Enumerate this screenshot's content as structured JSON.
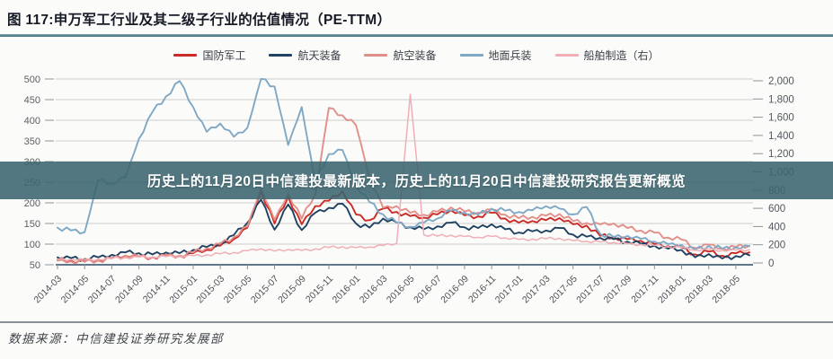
{
  "title": "图 117:申万军工行业及其二级子行业的估值情况（PE-TTM）",
  "watermark_banner": {
    "text": "历史上的11月20日中信建投最新版本，历史上的11月20日中信建投研究报告更新概览",
    "background_color": "#3A646E"
  },
  "footer": {
    "source_label": "数据来源：中信建投证券研究发展部"
  },
  "chart_data": {
    "type": "line",
    "title": "申万军工行业及其二级子行业的估值情况（PE-TTM）",
    "grid": "horizontal",
    "legend_position": "top",
    "x": [
      "2014-03",
      "2014-04",
      "2014-05",
      "2014-06",
      "2014-07",
      "2014-08",
      "2014-09",
      "2014-10",
      "2014-11",
      "2014-12",
      "2015-01",
      "2015-02",
      "2015-03",
      "2015-04",
      "2015-05",
      "2015-06",
      "2015-07",
      "2015-08",
      "2015-09",
      "2015-10",
      "2015-11",
      "2015-12",
      "2016-01",
      "2016-02",
      "2016-03",
      "2016-04",
      "2016-05",
      "2016-06",
      "2016-07",
      "2016-08",
      "2016-09",
      "2016-10",
      "2016-11",
      "2016-12",
      "2017-01",
      "2017-02",
      "2017-03",
      "2017-04",
      "2017-05",
      "2017-06",
      "2017-07",
      "2017-08",
      "2017-09",
      "2017-10",
      "2017-11",
      "2017-12",
      "2018-01",
      "2018-02",
      "2018-03",
      "2018-04",
      "2018-05",
      "2018-06"
    ],
    "x_tick_labels": [
      "2014-03",
      "2014-05",
      "2014-07",
      "2014-09",
      "2014-11",
      "2015-01",
      "2015-03",
      "2015-05",
      "2015-07",
      "2015-09",
      "2015-11",
      "2016-01",
      "2016-03",
      "2016-05",
      "2016-07",
      "2016-09",
      "2016-11",
      "2017-01",
      "2017-03",
      "2017-05",
      "2017-07",
      "2017-09",
      "2017-11",
      "2018-01",
      "2018-03",
      "2018-05"
    ],
    "left_axis": {
      "min": 50,
      "max": 500,
      "ticks": [
        500,
        450,
        400,
        350,
        300,
        250,
        200,
        150,
        100,
        50
      ]
    },
    "right_axis": {
      "min": 0,
      "max": 2000,
      "ticks": [
        2000,
        1800,
        1600,
        1400,
        1200,
        1000,
        800,
        600,
        400,
        200,
        0
      ],
      "labels": [
        "2,000",
        "1,800",
        "1,600",
        "1,400",
        "1,200",
        "1,000",
        "800",
        "600",
        "400",
        "200",
        "0"
      ]
    },
    "series": [
      {
        "name": "国防军工",
        "color": "#CB2A25",
        "axis": "left",
        "values": [
          62,
          60,
          58,
          62,
          66,
          72,
          70,
          68,
          73,
          71,
          78,
          86,
          96,
          112,
          140,
          228,
          150,
          215,
          148,
          192,
          205,
          228,
          172,
          158,
          186,
          178,
          168,
          164,
          172,
          182,
          170,
          167,
          176,
          162,
          152,
          156,
          158,
          163,
          148,
          145,
          120,
          117,
          112,
          108,
          100,
          95,
          92,
          75,
          82,
          72,
          78,
          80
        ]
      },
      {
        "name": "航天装备",
        "color": "#1F4262",
        "axis": "left",
        "values": [
          68,
          66,
          64,
          68,
          74,
          80,
          78,
          75,
          80,
          78,
          86,
          93,
          102,
          122,
          152,
          208,
          135,
          196,
          134,
          176,
          188,
          198,
          150,
          140,
          162,
          152,
          141,
          136,
          143,
          152,
          141,
          139,
          148,
          136,
          128,
          131,
          133,
          139,
          123,
          118,
          115,
          112,
          106,
          101,
          96,
          89,
          86,
          68,
          76,
          65,
          71,
          73
        ]
      },
      {
        "name": "航空装备",
        "color": "#E28F89",
        "axis": "left",
        "values": [
          60,
          58,
          57,
          60,
          65,
          72,
          70,
          68,
          73,
          72,
          80,
          90,
          101,
          117,
          143,
          235,
          158,
          222,
          162,
          222,
          430,
          412,
          388,
          262,
          188,
          192,
          176,
          171,
          179,
          189,
          179,
          176,
          184,
          171,
          163,
          166,
          169,
          173,
          156,
          151,
          148,
          150,
          139,
          133,
          128,
          116,
          111,
          91,
          99,
          89,
          93,
          96
        ]
      },
      {
        "name": "地面兵装",
        "color": "#7FA8C5",
        "axis": "left",
        "values": [
          140,
          133,
          129,
          255,
          246,
          262,
          355,
          420,
          458,
          495,
          432,
          372,
          392,
          360,
          382,
          500,
          482,
          340,
          432,
          250,
          318,
          328,
          242,
          202,
          172,
          152,
          142,
          152,
          162,
          182,
          176,
          171,
          186,
          181,
          178,
          182,
          192,
          186,
          172,
          190,
          125,
          117,
          120,
          113,
          106,
          100,
          98,
          86,
          96,
          89,
          92,
          95
        ]
      },
      {
        "name": "船舶制造（右）",
        "color": "#F0AEB6",
        "axis": "right",
        "values": [
          40,
          38,
          36,
          42,
          50,
          60,
          65,
          64,
          70,
          70,
          80,
          90,
          100,
          115,
          135,
          155,
          130,
          148,
          138,
          155,
          170,
          178,
          168,
          175,
          192,
          215,
          1850,
          310,
          295,
          305,
          290,
          282,
          292,
          275,
          258,
          262,
          266,
          272,
          245,
          238,
          230,
          224,
          212,
          203,
          192,
          180,
          172,
          140,
          152,
          135,
          142,
          146
        ]
      }
    ]
  }
}
